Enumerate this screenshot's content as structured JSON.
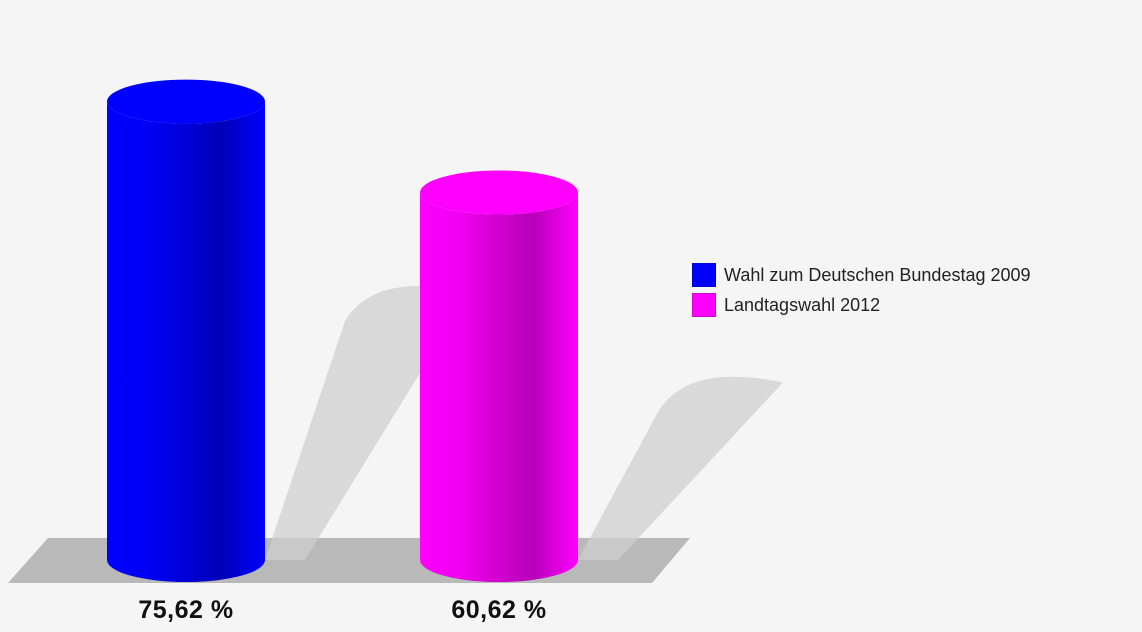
{
  "chart_data": {
    "type": "bar",
    "style": "3d-cylinder",
    "categories": [
      "Wahl zum Deutschen Bundestag 2009",
      "Landtagswahl 2012"
    ],
    "values": [
      75.62,
      60.62
    ],
    "value_labels": [
      "75,62 %",
      "60,62 %"
    ],
    "colors": [
      "#0000ff",
      "#ff00ff"
    ],
    "ylim": [
      0,
      80
    ],
    "grid": false,
    "legend_position": "right"
  }
}
